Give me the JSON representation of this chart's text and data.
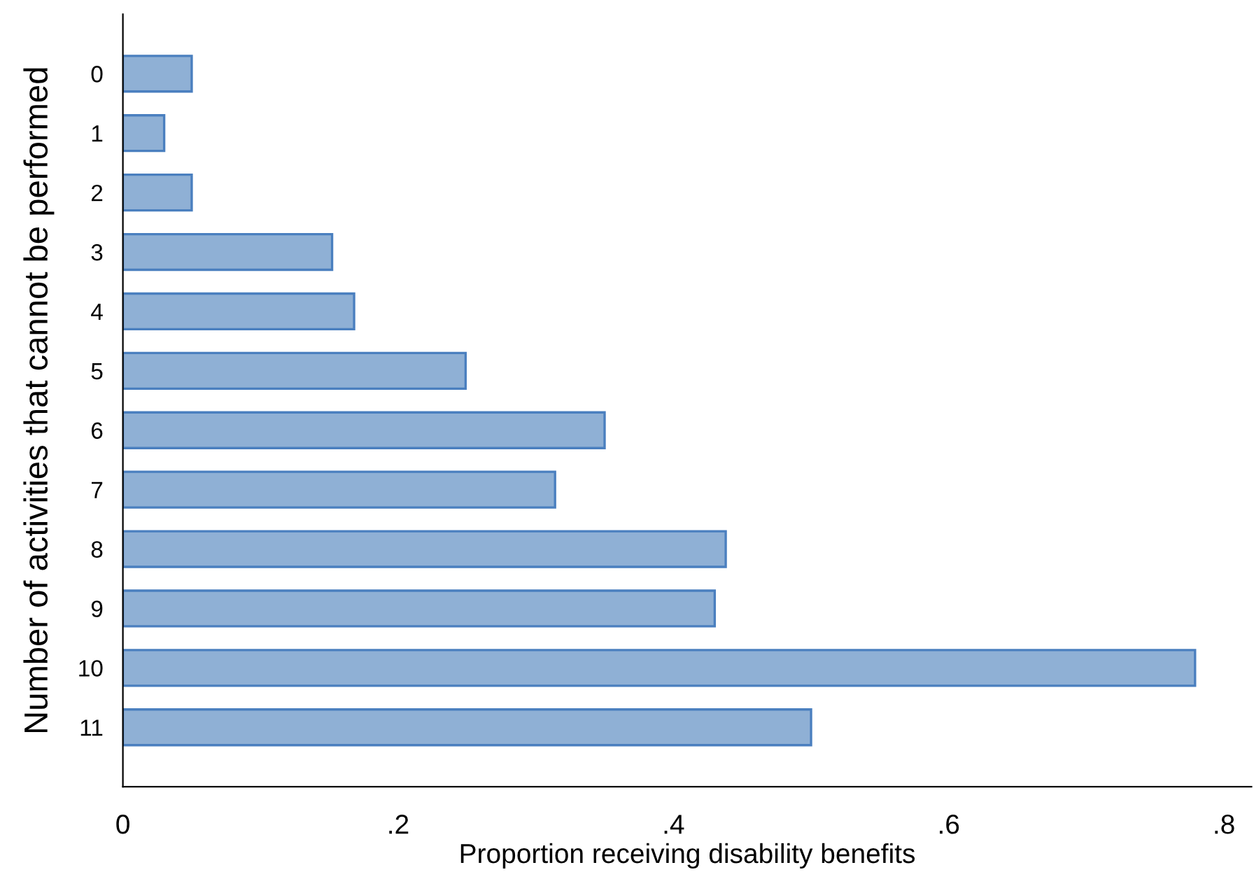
{
  "chart_data": {
    "type": "bar",
    "orientation": "horizontal",
    "xlabel": "Proportion receiving disability benefits",
    "ylabel": "Number of activities that cannot be performed",
    "categories": [
      "0",
      "1",
      "2",
      "3",
      "4",
      "5",
      "6",
      "7",
      "8",
      "9",
      "10",
      "11"
    ],
    "values": [
      0.05,
      0.03,
      0.05,
      0.152,
      0.168,
      0.249,
      0.35,
      0.314,
      0.438,
      0.43,
      0.779,
      0.5
    ],
    "color": "#8fb0d5",
    "xlim": [
      0,
      0.82
    ],
    "xticks": [
      0,
      {
        "value": 0.2,
        "label": ".2"
      },
      {
        "value": 0.4,
        "label": ".4"
      },
      {
        "value": 0.6,
        "label": ".6"
      },
      {
        "value": 0.8,
        "label": ".8"
      }
    ],
    "grid": false,
    "legend": false
  }
}
